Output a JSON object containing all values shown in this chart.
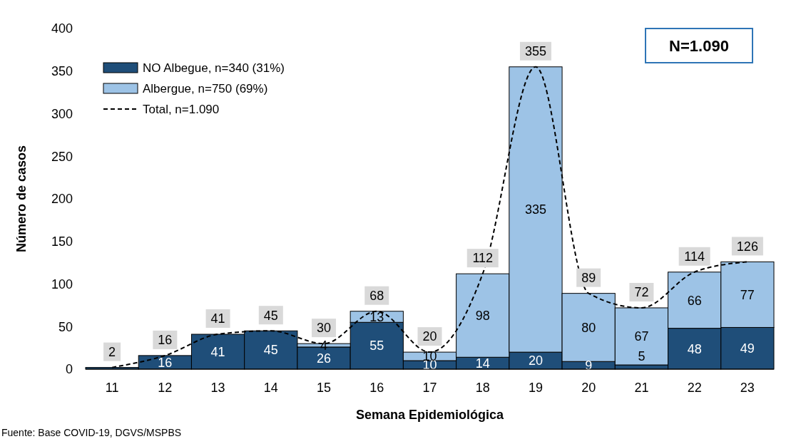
{
  "chart_data": {
    "type": "bar",
    "stacked": true,
    "xlabel": "Semana Epidemiológica",
    "ylabel": "Número de casos",
    "categories": [
      "11",
      "12",
      "13",
      "14",
      "15",
      "16",
      "17",
      "18",
      "19",
      "20",
      "21",
      "22",
      "23"
    ],
    "series": [
      {
        "name": "NO Albegue, n=340 (31%)",
        "color": "#1f4e79",
        "values": [
          2,
          16,
          41,
          45,
          26,
          55,
          10,
          14,
          20,
          9,
          5,
          48,
          49
        ],
        "value_labels": [
          null,
          "16",
          "41",
          "45",
          "26",
          "55",
          "10",
          "14",
          "20",
          "9",
          "5",
          "48",
          "49"
        ]
      },
      {
        "name": "Albergue, n=750 (69%)",
        "color": "#9dc3e6",
        "values": [
          0,
          0,
          0,
          0,
          4,
          13,
          10,
          98,
          335,
          80,
          67,
          66,
          77
        ],
        "value_labels": [
          null,
          null,
          null,
          null,
          "4",
          "13",
          "10",
          "98",
          "335",
          "80",
          "67",
          "66",
          "77"
        ]
      },
      {
        "name": "Total, n=1.090",
        "type": "line",
        "color": "#000000",
        "line_style": "dashed",
        "values": [
          2,
          16,
          41,
          45,
          30,
          68,
          20,
          112,
          355,
          89,
          72,
          114,
          126
        ]
      }
    ],
    "totals": [
      "2",
      "16",
      "41",
      "45",
      "30",
      "68",
      "20",
      "112",
      "355",
      "89",
      "72",
      "114",
      "126"
    ],
    "ylim": [
      0,
      400
    ],
    "yticks": [
      0,
      50,
      100,
      150,
      200,
      250,
      300,
      350,
      400
    ],
    "grid": false,
    "legend": "top left",
    "annotations": [
      "N=1.090",
      "Fuente: Base COVID-19,  DGVS/MSPBS"
    ]
  }
}
